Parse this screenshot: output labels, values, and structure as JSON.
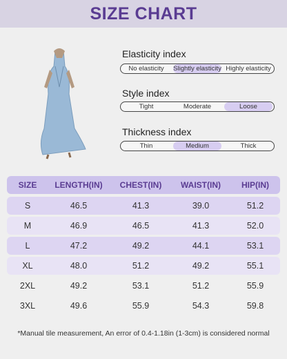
{
  "header": {
    "title": "SIZE CHART"
  },
  "indices": [
    {
      "label": "Elasticity index",
      "options": [
        "No elasticity",
        "Slightly elasticity",
        "Highly elasticity"
      ],
      "selected": 1
    },
    {
      "label": "Style index",
      "options": [
        "Tight",
        "Moderate",
        "Loose"
      ],
      "selected": 2
    },
    {
      "label": "Thickness index",
      "options": [
        "Thin",
        "Medium",
        "Thick"
      ],
      "selected": 1
    }
  ],
  "table": {
    "columns": [
      "SIZE",
      "LENGTH(IN)",
      "CHEST(IN)",
      "WAIST(IN)",
      "HIP(IN)"
    ],
    "rows": [
      [
        "S",
        "46.5",
        "41.3",
        "39.0",
        "51.2"
      ],
      [
        "M",
        "46.9",
        "46.5",
        "41.3",
        "52.0"
      ],
      [
        "L",
        "47.2",
        "49.2",
        "44.1",
        "53.1"
      ],
      [
        "XL",
        "48.0",
        "51.2",
        "49.2",
        "55.1"
      ],
      [
        "2XL",
        "49.2",
        "53.1",
        "51.2",
        "55.9"
      ],
      [
        "3XL",
        "49.6",
        "55.9",
        "54.3",
        "59.8"
      ]
    ]
  },
  "note": "*Manual tile measurement, An error of 0.4-1.18in (1-3cm) is considered normal"
}
